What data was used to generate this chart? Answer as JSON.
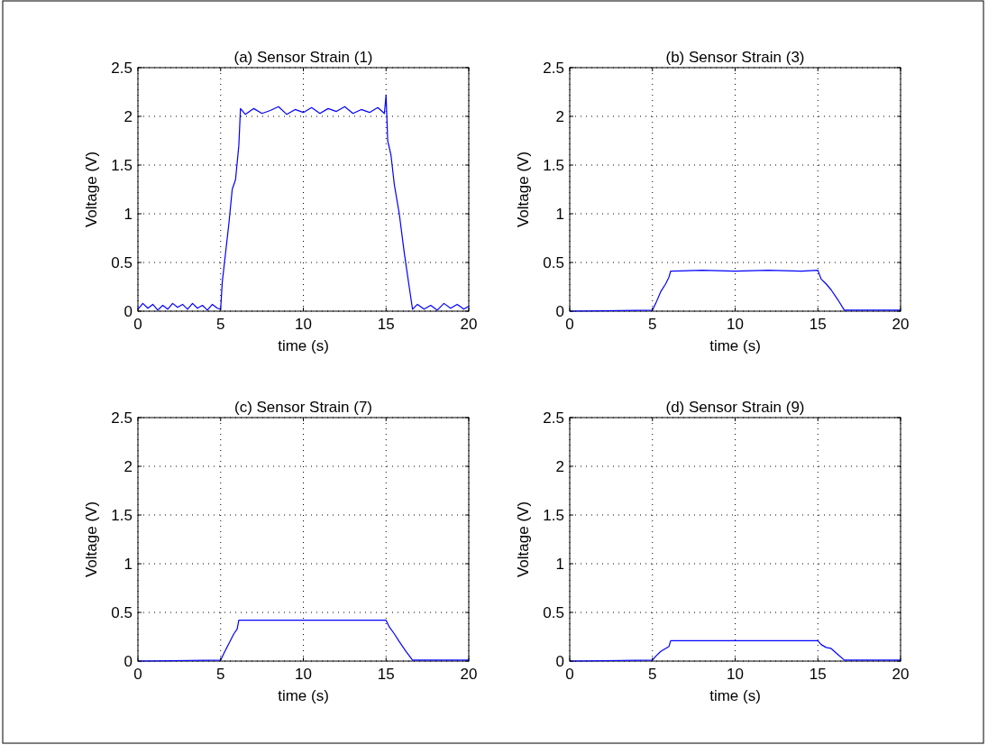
{
  "chart_data": [
    {
      "type": "line",
      "title": "(a) Sensor Strain (1)",
      "xlabel": "time (s)",
      "ylabel": "Voltage (V)",
      "xlim": [
        0,
        20
      ],
      "ylim": [
        0,
        2.5
      ],
      "xticks": [
        0,
        5,
        10,
        15,
        20
      ],
      "yticks": [
        0,
        0.5,
        1,
        1.5,
        2,
        2.5
      ],
      "grid": true,
      "line_style": "solid",
      "series": [
        {
          "color": "#0000ff",
          "x": [
            0,
            0.3,
            0.6,
            0.9,
            1.2,
            1.5,
            1.8,
            2.1,
            2.4,
            2.7,
            3,
            3.3,
            3.6,
            3.9,
            4.2,
            4.5,
            4.8,
            5,
            5.1,
            5.3,
            5.5,
            5.7,
            5.9,
            6.1,
            6.2,
            6.5,
            7,
            7.5,
            8,
            8.5,
            9,
            9.5,
            10,
            10.5,
            11,
            11.5,
            12,
            12.5,
            13,
            13.5,
            14,
            14.5,
            14.9,
            15,
            15.1,
            15.3,
            15.5,
            15.8,
            16.1,
            16.4,
            16.6,
            16.9,
            17.3,
            17.7,
            18.1,
            18.5,
            18.9,
            19.3,
            19.7,
            20
          ],
          "values": [
            0.02,
            0.08,
            0.03,
            0.07,
            0.01,
            0.06,
            0.02,
            0.08,
            0.04,
            0.07,
            0.02,
            0.08,
            0.03,
            0.06,
            0.01,
            0.07,
            0.03,
            0.02,
            0.3,
            0.6,
            0.9,
            1.25,
            1.35,
            1.7,
            2.08,
            2.02,
            2.08,
            2.03,
            2.06,
            2.1,
            2.02,
            2.07,
            2.04,
            2.09,
            2.03,
            2.08,
            2.05,
            2.1,
            2.03,
            2.07,
            2.04,
            2.09,
            2.03,
            2.22,
            1.75,
            1.6,
            1.3,
            1.0,
            0.6,
            0.25,
            0.02,
            0.07,
            0.02,
            0.06,
            0.01,
            0.08,
            0.03,
            0.07,
            0.02,
            0.05
          ]
        }
      ]
    },
    {
      "type": "line",
      "title": "(b) Sensor Strain (3)",
      "xlabel": "time (s)",
      "ylabel": "Voltage (V)",
      "xlim": [
        0,
        20
      ],
      "ylim": [
        0,
        2.5
      ],
      "xticks": [
        0,
        5,
        10,
        15,
        20
      ],
      "yticks": [
        0,
        0.5,
        1,
        1.5,
        2,
        2.5
      ],
      "grid": true,
      "line_style": "solid",
      "series": [
        {
          "color": "#0000ff",
          "x": [
            0,
            5,
            5.2,
            5.5,
            5.8,
            6,
            6.1,
            8,
            10,
            12,
            14,
            15,
            15.2,
            15.5,
            15.8,
            16.2,
            16.6,
            18,
            20
          ],
          "values": [
            0,
            0.01,
            0.08,
            0.2,
            0.28,
            0.35,
            0.41,
            0.42,
            0.41,
            0.42,
            0.41,
            0.42,
            0.33,
            0.28,
            0.22,
            0.12,
            0.01,
            0.01,
            0.01
          ]
        }
      ]
    },
    {
      "type": "line",
      "title": "(c) Sensor Strain (7)",
      "xlabel": "time (s)",
      "ylabel": "Voltage (V)",
      "xlim": [
        0,
        20
      ],
      "ylim": [
        0,
        2.5
      ],
      "xticks": [
        0,
        5,
        10,
        15,
        20
      ],
      "yticks": [
        0,
        0.5,
        1,
        1.5,
        2,
        2.5
      ],
      "grid": true,
      "line_style": "solid",
      "series": [
        {
          "color": "#0000ff",
          "x": [
            0,
            5,
            5.2,
            5.5,
            5.8,
            6,
            6.1,
            8,
            10,
            12,
            14,
            15,
            15.2,
            15.5,
            15.8,
            16.2,
            16.6,
            18,
            20
          ],
          "values": [
            0,
            0.01,
            0.08,
            0.18,
            0.28,
            0.33,
            0.42,
            0.42,
            0.42,
            0.42,
            0.42,
            0.42,
            0.35,
            0.28,
            0.2,
            0.1,
            0.01,
            0.01,
            0.01
          ]
        }
      ]
    },
    {
      "type": "line",
      "title": "(d) Sensor Strain (9)",
      "xlabel": "time (s)",
      "ylabel": "Voltage (V)",
      "xlim": [
        0,
        20
      ],
      "ylim": [
        0,
        2.5
      ],
      "xticks": [
        0,
        5,
        10,
        15,
        20
      ],
      "yticks": [
        0,
        0.5,
        1,
        1.5,
        2,
        2.5
      ],
      "grid": true,
      "line_style": "solid",
      "series": [
        {
          "color": "#0000ff",
          "x": [
            0,
            5,
            5.2,
            5.5,
            5.8,
            6,
            6.1,
            8,
            10,
            12,
            14,
            15,
            15.2,
            15.5,
            15.8,
            16.2,
            16.6,
            18,
            20
          ],
          "values": [
            0,
            0.01,
            0.05,
            0.1,
            0.13,
            0.15,
            0.21,
            0.21,
            0.21,
            0.21,
            0.21,
            0.21,
            0.17,
            0.14,
            0.13,
            0.07,
            0.01,
            0.01,
            0.01
          ]
        }
      ]
    }
  ]
}
